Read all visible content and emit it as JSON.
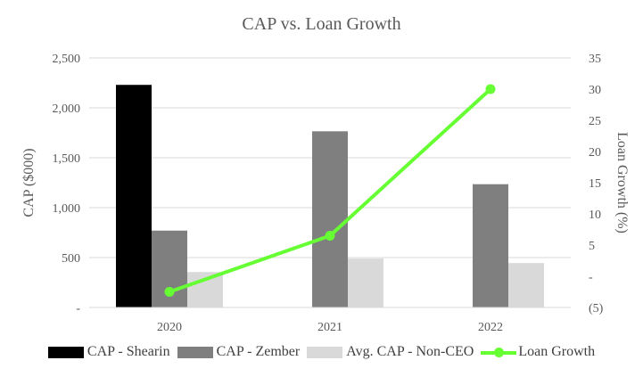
{
  "chart_data": {
    "type": "bar",
    "title": "CAP vs. Loan Growth",
    "categories": [
      "2020",
      "2021",
      "2022"
    ],
    "ylabel": "CAP ($000)",
    "y2label": "Loan Growth (%)",
    "ylim": [
      0,
      2500
    ],
    "y2lim": [
      -5,
      35
    ],
    "yticks": [
      "-",
      "500",
      "1,000",
      "1,500",
      "2,000",
      "2,500"
    ],
    "y2ticks": [
      "(5)",
      "-",
      "5",
      "10",
      "15",
      "20",
      "25",
      "30",
      "35"
    ],
    "series": [
      {
        "name": "CAP - Shearin",
        "type": "bar",
        "axis": "left",
        "color": "#000000",
        "values": [
          2230,
          null,
          null
        ]
      },
      {
        "name": "CAP - Zember",
        "type": "bar",
        "axis": "left",
        "color": "#7f7f7f",
        "values": [
          770,
          1765,
          1235
        ]
      },
      {
        "name": "Avg. CAP - Non-CEO",
        "type": "bar",
        "axis": "left",
        "color": "#d9d9d9",
        "values": [
          355,
          490,
          445
        ]
      },
      {
        "name": "Loan Growth",
        "type": "line",
        "axis": "right",
        "color": "#66ff33",
        "values": [
          -2.5,
          6.5,
          30
        ]
      }
    ],
    "legend_position": "bottom",
    "grid": true
  }
}
